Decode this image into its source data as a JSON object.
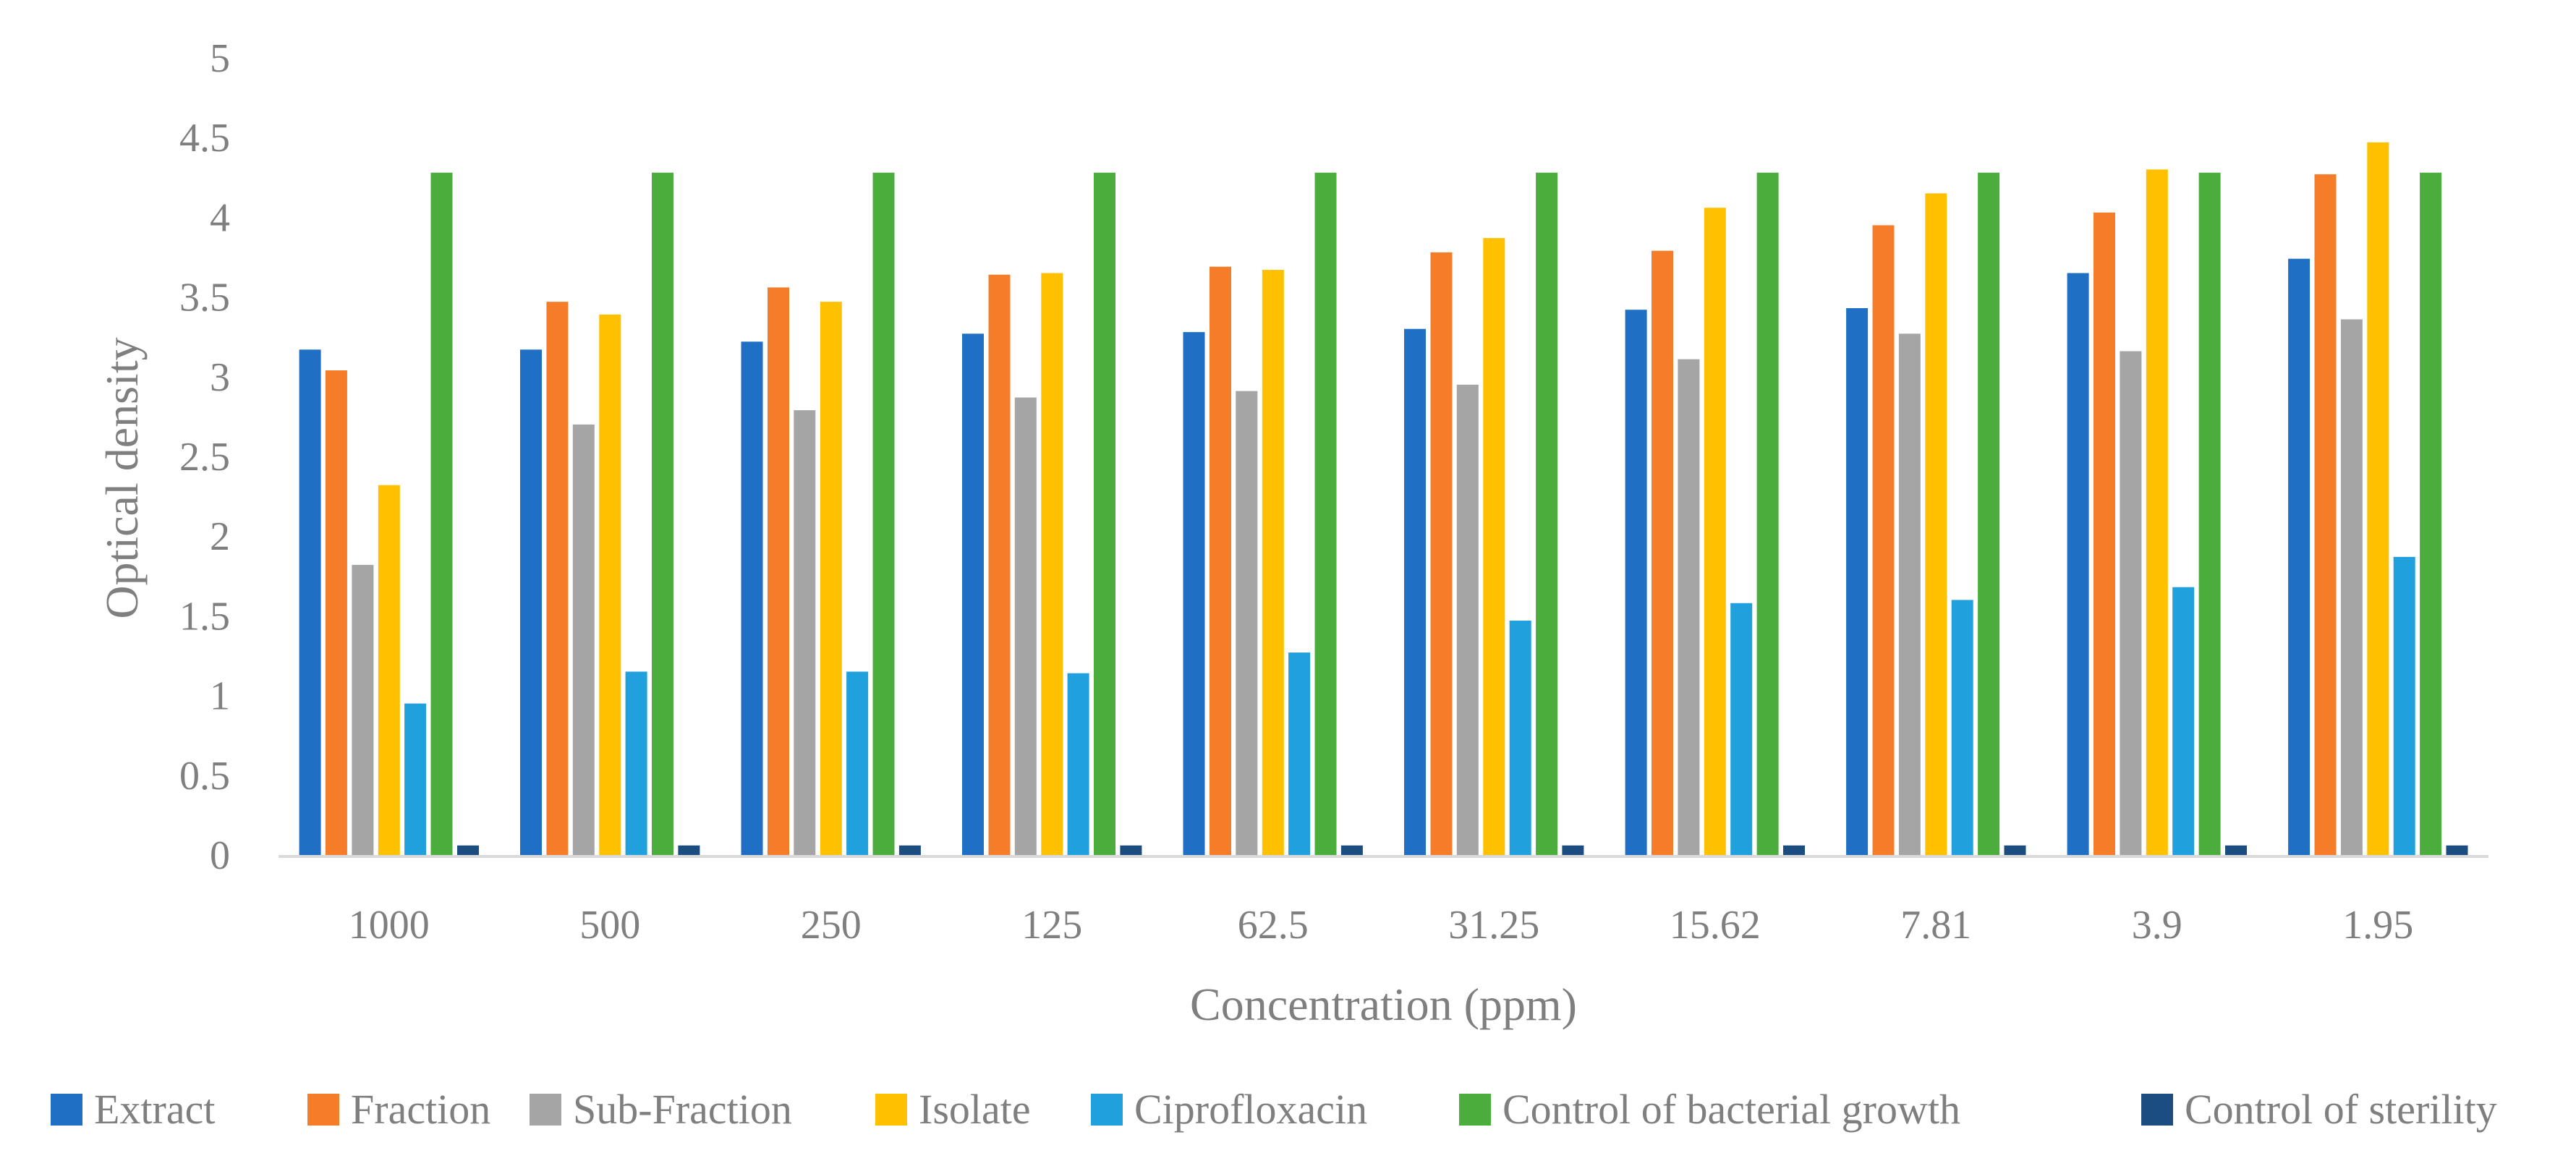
{
  "chart_data": {
    "type": "bar",
    "title": "",
    "xlabel": "Concentration (ppm)",
    "ylabel": "Optical density",
    "ylim": [
      0,
      5
    ],
    "yticks": [
      0,
      0.5,
      1,
      1.5,
      2,
      2.5,
      3,
      3.5,
      4,
      4.5,
      5
    ],
    "ytick_labels": [
      "0",
      "0.5",
      "1",
      "1.5",
      "2",
      "2.5",
      "3",
      "3.5",
      "4",
      "4.5",
      "5"
    ],
    "grid": false,
    "legend_position": "bottom",
    "categories": [
      "1000",
      "500",
      "250",
      "125",
      "62.5",
      "31.25",
      "15.62",
      "7.81",
      "3.9",
      "1.95"
    ],
    "series": [
      {
        "name": "Extract",
        "color": "#1f6fc5",
        "values": [
          3.17,
          3.17,
          3.22,
          3.27,
          3.28,
          3.3,
          3.42,
          3.43,
          3.65,
          3.74
        ]
      },
      {
        "name": "Fraction",
        "color": "#f57c28",
        "values": [
          3.04,
          3.47,
          3.56,
          3.64,
          3.69,
          3.78,
          3.79,
          3.95,
          4.03,
          4.27
        ]
      },
      {
        "name": "Sub-Fraction",
        "color": "#a5a5a5",
        "values": [
          1.82,
          2.7,
          2.79,
          2.87,
          2.91,
          2.95,
          3.11,
          3.27,
          3.16,
          3.36
        ]
      },
      {
        "name": "Isolate",
        "color": "#ffc000",
        "values": [
          2.32,
          3.39,
          3.47,
          3.65,
          3.67,
          3.87,
          4.06,
          4.15,
          4.3,
          4.47
        ]
      },
      {
        "name": "Ciprofloxacin",
        "color": "#20a0dc",
        "values": [
          0.95,
          1.15,
          1.15,
          1.14,
          1.27,
          1.47,
          1.58,
          1.6,
          1.68,
          1.87
        ]
      },
      {
        "name": "Control of bacterial growth",
        "color": "#4aad3c",
        "values": [
          4.28,
          4.28,
          4.28,
          4.28,
          4.28,
          4.28,
          4.28,
          4.28,
          4.28,
          4.28
        ]
      },
      {
        "name": "Control of sterility",
        "color": "#1b4d80",
        "values": [
          0.06,
          0.06,
          0.06,
          0.06,
          0.06,
          0.06,
          0.06,
          0.06,
          0.06,
          0.06
        ]
      }
    ]
  }
}
